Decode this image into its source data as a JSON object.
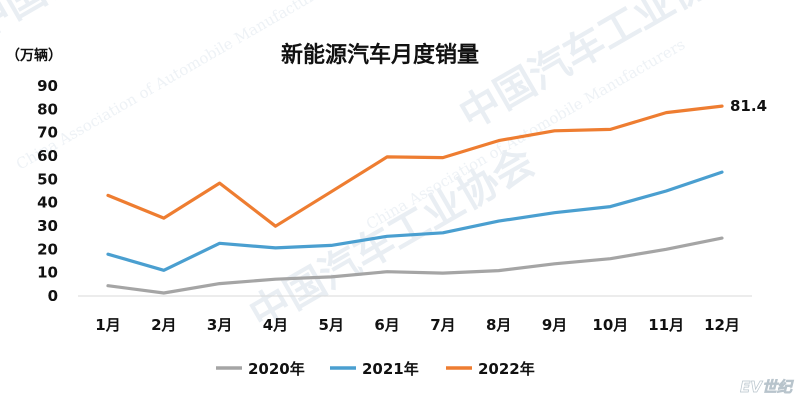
{
  "watermark": {
    "org": "中国汽车工业协会",
    "org_en": "China Association of Automobile Manufacturers",
    "corner": "EV世纪"
  },
  "chart_data": {
    "type": "line",
    "title": "新能源汽车月度销量",
    "ylabel": "（万辆）",
    "xlabel": "",
    "ylim": [
      0,
      90
    ],
    "yticks": [
      0,
      10,
      20,
      30,
      40,
      50,
      60,
      70,
      80,
      90
    ],
    "categories": [
      "1月",
      "2月",
      "3月",
      "4月",
      "5月",
      "6月",
      "7月",
      "8月",
      "9月",
      "10月",
      "11月",
      "12月"
    ],
    "grid": false,
    "legend_position": "bottom",
    "series": [
      {
        "name": "2020年",
        "color": "#a5a5a5",
        "values": [
          4.4,
          1.3,
          5.3,
          7.2,
          8.2,
          10.4,
          9.8,
          10.9,
          13.8,
          16.0,
          20.0,
          24.8
        ]
      },
      {
        "name": "2021年",
        "color": "#4a9fd0",
        "values": [
          17.9,
          11.0,
          22.6,
          20.6,
          21.7,
          25.6,
          27.1,
          32.1,
          35.7,
          38.3,
          45.0,
          53.1
        ]
      },
      {
        "name": "2022年",
        "color": "#ee7d31",
        "values": [
          43.1,
          33.4,
          48.4,
          29.9,
          44.7,
          59.6,
          59.3,
          66.6,
          70.8,
          71.4,
          78.6,
          81.4
        ]
      }
    ],
    "annotations": [
      {
        "series": "2022年",
        "category": "12月",
        "text": "81.4"
      }
    ]
  }
}
